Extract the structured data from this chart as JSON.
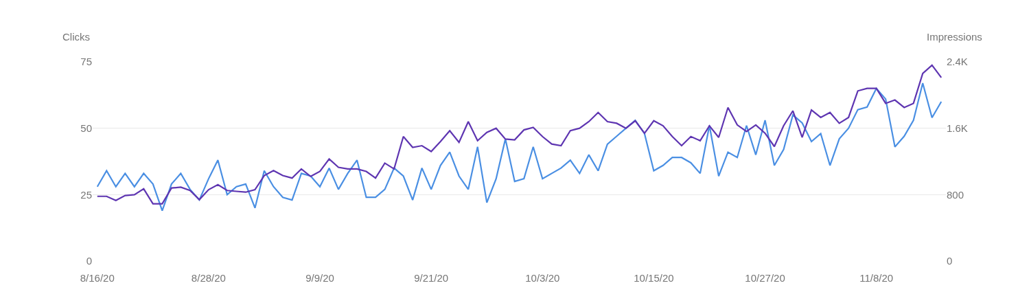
{
  "chart_data": {
    "type": "line",
    "ylabel": "Clicks",
    "y2label": "Impressions",
    "x": [
      "--08-16",
      "--08-17",
      "--08-18",
      "--08-19",
      "--08-20",
      "--08-21",
      "--08-22",
      "--08-23",
      "--08-24",
      "--08-25",
      "--08-26",
      "--08-27",
      "--08-28",
      "--08-29",
      "--08-30",
      "--08-31",
      "--09-01",
      "--09-02",
      "--09-03",
      "--09-04",
      "--09-05",
      "--09-06",
      "--09-07",
      "--09-08",
      "--09-09",
      "--09-10",
      "--09-11",
      "--09-12",
      "--09-13",
      "--09-14",
      "--09-15",
      "--09-16",
      "--09-17",
      "--09-18",
      "--09-19",
      "--09-20",
      "--09-21",
      "--09-22",
      "--09-23",
      "--09-24",
      "--09-25",
      "--09-26",
      "--09-27",
      "--09-28",
      "--09-29",
      "--09-30",
      "--10-01",
      "--10-02",
      "--10-03",
      "--10-04",
      "--10-05",
      "--10-06",
      "--10-07",
      "--10-08",
      "--10-09",
      "--10-10",
      "--10-11",
      "--10-12",
      "--10-13",
      "--10-14",
      "--10-15",
      "--10-16",
      "--10-17",
      "--10-18",
      "--10-19",
      "--10-20",
      "--10-21",
      "--10-22",
      "--10-23",
      "--10-24",
      "--10-25",
      "--10-26",
      "--10-27",
      "--10-28",
      "--10-29",
      "--10-30",
      "--10-31",
      "--11-01",
      "--11-02",
      "--11-03",
      "--11-04",
      "--11-05",
      "--11-06",
      "--11-07",
      "--11-08",
      "--11-09",
      "--11-10",
      "--11-11",
      "--11-12",
      "--11-13",
      "--11-14",
      "--11-15"
    ],
    "xlim": [
      "--08-15T12:00",
      "--11-15T12:00"
    ],
    "xticks": [
      {
        "value": "--08-16",
        "label": "8/16/20"
      },
      {
        "value": "--08-28",
        "label": "8/28/20"
      },
      {
        "value": "--09-09",
        "label": "9/9/20"
      },
      {
        "value": "--09-21",
        "label": "9/21/20"
      },
      {
        "value": "--10-03",
        "label": "10/3/20"
      },
      {
        "value": "--10-15",
        "label": "10/15/20"
      },
      {
        "value": "--10-27",
        "label": "10/27/20"
      },
      {
        "value": "--11-08",
        "label": "11/8/20"
      }
    ],
    "ylim": [
      0,
      75
    ],
    "yticks": [
      0,
      25,
      50,
      75
    ],
    "y2lim": [
      0,
      2400
    ],
    "y2ticks": [
      0,
      800,
      {
        "value": 1600,
        "label": "1.6K"
      },
      {
        "value": 2400,
        "label": "2.4K"
      }
    ],
    "grid": "y",
    "marker": "none",
    "line_style": "solid",
    "series": [
      {
        "color": "#4a8fe3",
        "axis": "y",
        "values": [
          28,
          34,
          28,
          33,
          28,
          33,
          29,
          19,
          29,
          33,
          27,
          23,
          31,
          38,
          25,
          28,
          29,
          20,
          34,
          28,
          24,
          23,
          33,
          32,
          28,
          35,
          27,
          33,
          38,
          24,
          24,
          27,
          35,
          32,
          23,
          35,
          27,
          36,
          41,
          32,
          27,
          43,
          22,
          31,
          46,
          30,
          31,
          43,
          31,
          33,
          35,
          38,
          33,
          40,
          34,
          44,
          47,
          50,
          53,
          48,
          34,
          36,
          39,
          39,
          37,
          33,
          51,
          32,
          41,
          39,
          51,
          40,
          53,
          36,
          42,
          55,
          52,
          45,
          48,
          36,
          46,
          50,
          57,
          58,
          65,
          61,
          43,
          47,
          53,
          67,
          54,
          60
        ]
      },
      {
        "color": "#5e35b1",
        "axis": "y2",
        "values": [
          780,
          780,
          730,
          790,
          800,
          870,
          690,
          690,
          880,
          890,
          850,
          740,
          860,
          920,
          850,
          840,
          830,
          860,
          1030,
          1090,
          1030,
          1000,
          1110,
          1020,
          1080,
          1230,
          1130,
          1110,
          1110,
          1080,
          1000,
          1180,
          1110,
          1500,
          1370,
          1390,
          1320,
          1440,
          1570,
          1430,
          1680,
          1450,
          1550,
          1600,
          1470,
          1460,
          1580,
          1610,
          1500,
          1410,
          1390,
          1570,
          1600,
          1680,
          1790,
          1680,
          1660,
          1600,
          1690,
          1540,
          1690,
          1630,
          1500,
          1390,
          1500,
          1450,
          1630,
          1490,
          1850,
          1640,
          1560,
          1640,
          1540,
          1380,
          1630,
          1810,
          1490,
          1820,
          1730,
          1790,
          1660,
          1730,
          2050,
          2080,
          2080,
          1900,
          1940,
          1850,
          1900,
          2260,
          2360,
          2210
        ]
      }
    ]
  }
}
